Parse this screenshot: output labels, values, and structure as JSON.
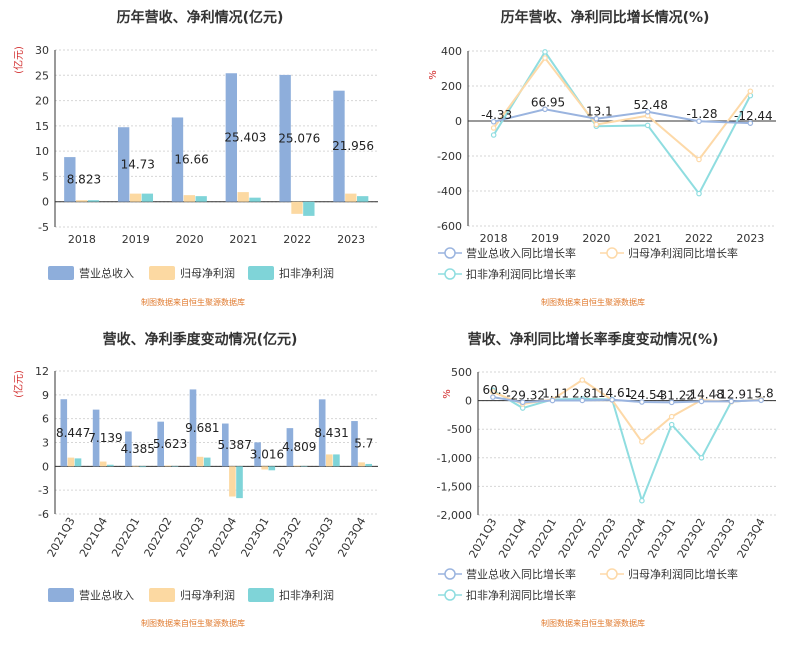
{
  "colors": {
    "revenue": "#8eaedb",
    "profit": "#fcd9a2",
    "deducted": "#7fd4d8",
    "line_revenue": "#9ab4df",
    "line_profit": "#fdd9a8",
    "line_deducted": "#8fdde0",
    "source": "#e07a2e"
  },
  "legends": {
    "bar": [
      "营业总收入",
      "归母净利润",
      "扣非净利润"
    ],
    "line": [
      "营业总收入同比增长率",
      "归母净利润同比增长率",
      "扣非净利润同比增长率"
    ]
  },
  "source_text": "制图数据来自恒生聚源数据库",
  "chart_data": [
    {
      "type": "bar",
      "title": "历年营收、净利情况(亿元)",
      "unit": "(亿元)",
      "categories": [
        "2018",
        "2019",
        "2020",
        "2021",
        "2022",
        "2023"
      ],
      "ylim": [
        -5,
        30
      ],
      "yticks": [
        "-5",
        "0",
        "5",
        "10",
        "15",
        "20",
        "25",
        "30"
      ],
      "series": [
        {
          "name": "营业总收入",
          "values": [
            8.823,
            14.73,
            16.66,
            25.403,
            25.076,
            21.956
          ]
        },
        {
          "name": "归母净利润",
          "values": [
            0.3,
            1.6,
            1.3,
            1.9,
            -2.4,
            1.6
          ]
        },
        {
          "name": "扣非净利润",
          "values": [
            0.3,
            1.6,
            1.1,
            0.8,
            -2.8,
            1.1
          ]
        }
      ],
      "data_labels": [
        "8.823",
        "14.73",
        "16.66",
        "25.403",
        "25.076",
        "21.956"
      ]
    },
    {
      "type": "line",
      "title": "历年营收、净利同比增长情况(%)",
      "unit": "%",
      "categories": [
        "2018",
        "2019",
        "2020",
        "2021",
        "2022",
        "2023"
      ],
      "ylim": [
        -600,
        400
      ],
      "yticks": [
        "-600",
        "-400",
        "-200",
        "0",
        "200",
        "400"
      ],
      "series": [
        {
          "name": "营业总收入同比增长率",
          "values": [
            -4.33,
            66.95,
            13.1,
            52.48,
            -1.28,
            -12.44
          ]
        },
        {
          "name": "归母净利润同比增长率",
          "values": [
            -40,
            360,
            -20,
            30,
            -220,
            170
          ]
        },
        {
          "name": "扣非净利润同比增长率",
          "values": [
            -80,
            395,
            -30,
            -25,
            -415,
            145
          ]
        }
      ],
      "data_labels": [
        "-4.33",
        "66.95",
        "13.1",
        "52.48",
        "-1.28",
        "-12.44"
      ]
    },
    {
      "type": "bar",
      "title": "营收、净利季度变动情况(亿元)",
      "unit": "(亿元)",
      "categories": [
        "2021Q3",
        "2021Q4",
        "2022Q1",
        "2022Q2",
        "2022Q3",
        "2022Q4",
        "2023Q1",
        "2023Q2",
        "2023Q3",
        "2023Q4"
      ],
      "ylim": [
        -6,
        12
      ],
      "yticks": [
        "-6",
        "-3",
        "0",
        "3",
        "6",
        "9",
        "12"
      ],
      "series": [
        {
          "name": "营业总收入",
          "values": [
            8.447,
            7.139,
            4.385,
            5.623,
            9.681,
            5.387,
            3.016,
            4.809,
            8.431,
            5.7
          ]
        },
        {
          "name": "归母净利润",
          "values": [
            1.1,
            0.6,
            0.05,
            0.1,
            1.2,
            -3.8,
            -0.4,
            0.1,
            1.5,
            0.5
          ]
        },
        {
          "name": "扣非净利润",
          "values": [
            1.0,
            0.2,
            -0.1,
            0.05,
            1.1,
            -4.0,
            -0.5,
            0.05,
            1.5,
            0.3
          ]
        }
      ],
      "data_labels": [
        "8.447",
        "7.139",
        "4.385",
        "5.623",
        "9.681",
        "5.387",
        "3.016",
        "4.809",
        "8.431",
        "5.7"
      ]
    },
    {
      "type": "line",
      "title": "营收、净利同比增长率季度变动情况(%)",
      "unit": "%",
      "categories": [
        "2021Q3",
        "2021Q4",
        "2022Q1",
        "2022Q2",
        "2022Q3",
        "2022Q4",
        "2023Q1",
        "2023Q2",
        "2023Q3",
        "2023Q4"
      ],
      "ylim": [
        -2000,
        500
      ],
      "yticks": [
        "-2,000",
        "-1,500",
        "-1,000",
        "-500",
        "0",
        "500"
      ],
      "series": [
        {
          "name": "营业总收入同比增长率",
          "values": [
            60.9,
            -29.32,
            1.11,
            2.81,
            14.61,
            -24.54,
            -31.22,
            -14.48,
            -12.91,
            5.8
          ]
        },
        {
          "name": "归母净利润同比增长率",
          "values": [
            150,
            -60,
            20,
            360,
            10,
            -720,
            -280,
            10,
            -20,
            20
          ]
        },
        {
          "name": "扣非净利润同比增长率",
          "values": [
            180,
            -130,
            20,
            30,
            20,
            -1750,
            -420,
            -1000,
            -20,
            20
          ]
        }
      ],
      "data_labels": [
        "60.9",
        "-29.32",
        "1.11",
        "2.81",
        "14.61",
        "-24.54",
        "-31.22",
        "-14.48",
        "-12.91",
        "5.8"
      ]
    }
  ]
}
